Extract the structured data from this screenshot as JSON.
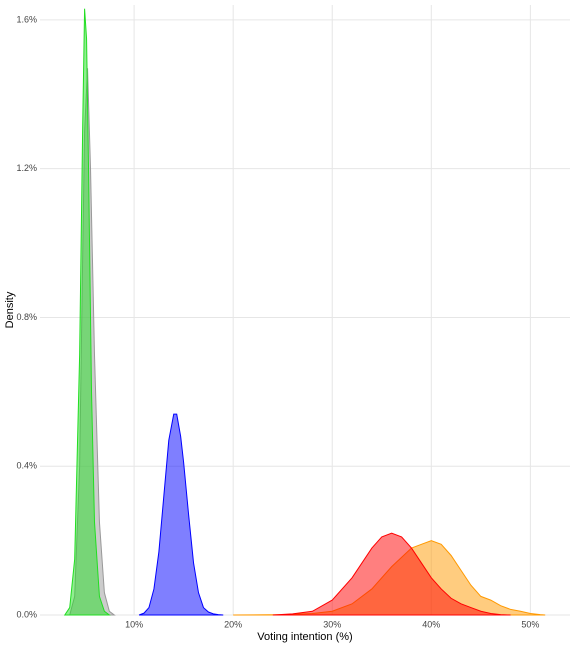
{
  "chart_data": {
    "type": "density",
    "x_label": "Voting intention (%)",
    "y_label": "Density",
    "xlim": [
      0.5,
      54
    ],
    "ylim": [
      0,
      1.64
    ],
    "xticks": [
      {
        "value": 10,
        "label": "10%"
      },
      {
        "value": 20,
        "label": "20%"
      },
      {
        "value": 30,
        "label": "30%"
      },
      {
        "value": 40,
        "label": "40%"
      },
      {
        "value": 50,
        "label": "50%"
      }
    ],
    "yticks": [
      {
        "value": 0,
        "label": "0.0%"
      },
      {
        "value": 0.4,
        "label": "0.4%"
      },
      {
        "value": 0.8,
        "label": "0.8%"
      },
      {
        "value": 1.2,
        "label": "1.2%"
      },
      {
        "value": 1.6,
        "label": "1.6%"
      }
    ],
    "grid": true,
    "series": [
      {
        "color": "#999999",
        "x": [
          3.5,
          4.0,
          4.5,
          4.8,
          5.0,
          5.3,
          5.6,
          6.0,
          6.5,
          7.0,
          7.5,
          8.0
        ],
        "values": [
          0,
          0.05,
          0.4,
          0.95,
          1.3,
          1.47,
          1.2,
          0.7,
          0.25,
          0.06,
          0.01,
          0
        ]
      },
      {
        "color": "#22dd22",
        "x": [
          3.0,
          3.5,
          4.0,
          4.5,
          4.8,
          5.0,
          5.2,
          5.4,
          5.7,
          6.0,
          6.5,
          7.0,
          7.5
        ],
        "values": [
          0,
          0.02,
          0.15,
          0.7,
          1.3,
          1.63,
          1.55,
          1.2,
          0.6,
          0.25,
          0.05,
          0.01,
          0
        ]
      },
      {
        "color": "#0000ff",
        "x": [
          10.5,
          11,
          11.5,
          12,
          12.5,
          13,
          13.5,
          14,
          14.3,
          14.7,
          15,
          15.5,
          16,
          16.5,
          17,
          17.5,
          18,
          18.5,
          19
        ],
        "values": [
          0,
          0.005,
          0.02,
          0.07,
          0.17,
          0.32,
          0.47,
          0.54,
          0.54,
          0.48,
          0.41,
          0.27,
          0.14,
          0.06,
          0.02,
          0.008,
          0.003,
          0.001,
          0
        ]
      },
      {
        "color": "#ff9900",
        "x": [
          20,
          25,
          28,
          30,
          32,
          34,
          36,
          38,
          39,
          40,
          41,
          42,
          43,
          44,
          45,
          46,
          47,
          48,
          49,
          50,
          51,
          51.5
        ],
        "values": [
          0,
          0.001,
          0.004,
          0.01,
          0.03,
          0.07,
          0.13,
          0.18,
          0.19,
          0.2,
          0.19,
          0.16,
          0.12,
          0.08,
          0.05,
          0.04,
          0.025,
          0.015,
          0.01,
          0.004,
          0.001,
          0
        ]
      },
      {
        "color": "#ff0000",
        "x": [
          24,
          26,
          28,
          30,
          32,
          34,
          35,
          36,
          37,
          38,
          39,
          40,
          41,
          42,
          43,
          44,
          45,
          46,
          47,
          48
        ],
        "values": [
          0,
          0.003,
          0.01,
          0.04,
          0.1,
          0.18,
          0.21,
          0.22,
          0.21,
          0.18,
          0.14,
          0.1,
          0.07,
          0.045,
          0.03,
          0.02,
          0.01,
          0.004,
          0.001,
          0
        ]
      }
    ]
  }
}
